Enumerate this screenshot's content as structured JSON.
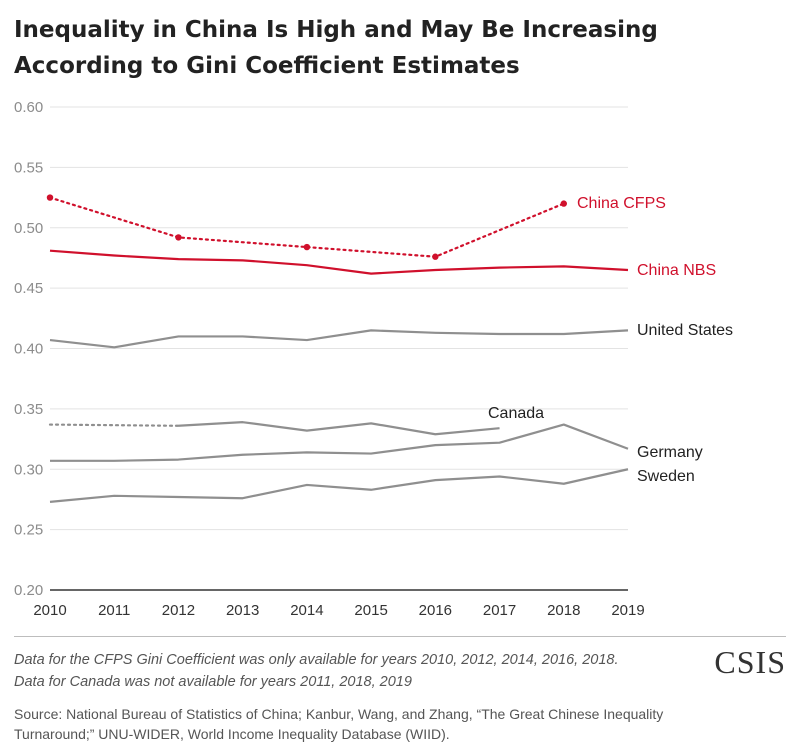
{
  "title": "Inequality in China Is High and May Be Increasing According to Gini Coefficient Estimates",
  "notes": [
    "Data for the CFPS Gini Coefficient was only available for years 2010, 2012, 2014, 2016, 2018.",
    "Data for Canada was not available for years 2011, 2018, 2019"
  ],
  "source": "Source: National Bureau of Statistics of China; Kanbur, Wang, and Zhang, “The Great Chinese Inequality Turnaround;” UNU-WIDER, World Income Inequality Database (WIID).",
  "logo": "CSIS",
  "chart_data": {
    "type": "line",
    "title": "Inequality in China Is High and May Be Increasing According to Gini Coefficient Estimates",
    "xlabel": "",
    "ylabel": "",
    "x": [
      2010,
      2011,
      2012,
      2013,
      2014,
      2015,
      2016,
      2017,
      2018,
      2019
    ],
    "ylim": [
      0.2,
      0.6
    ],
    "yticks": [
      "0.20",
      "0.25",
      "0.30",
      "0.35",
      "0.40",
      "0.45",
      "0.50",
      "0.55",
      "0.60"
    ],
    "grid": true,
    "legend": "direct labels at line ends",
    "series": [
      {
        "name": "China CFPS",
        "color": "#d0102c",
        "style": "dotted",
        "markers": true,
        "values": [
          0.525,
          null,
          0.492,
          null,
          0.484,
          null,
          0.476,
          null,
          0.52,
          null
        ]
      },
      {
        "name": "China NBS",
        "color": "#d0102c",
        "style": "solid",
        "values": [
          0.481,
          0.477,
          0.474,
          0.473,
          0.469,
          0.462,
          0.465,
          0.467,
          0.468,
          0.465
        ]
      },
      {
        "name": "United States",
        "color": "#8f8f8f",
        "style": "solid",
        "values": [
          0.407,
          0.401,
          0.41,
          0.41,
          0.407,
          0.415,
          0.413,
          0.412,
          0.412,
          0.415
        ]
      },
      {
        "name": "Canada",
        "color": "#8f8f8f",
        "style": "solid",
        "values": [
          0.337,
          null,
          0.336,
          0.339,
          0.332,
          0.338,
          0.329,
          0.334,
          null,
          null
        ],
        "gap_style": "dotted"
      },
      {
        "name": "Germany",
        "color": "#8f8f8f",
        "style": "solid",
        "values": [
          0.307,
          0.307,
          0.308,
          0.312,
          0.314,
          0.313,
          0.32,
          0.322,
          0.337,
          0.317
        ]
      },
      {
        "name": "Sweden",
        "color": "#8f8f8f",
        "style": "solid",
        "values": [
          0.273,
          0.278,
          0.277,
          0.276,
          0.287,
          0.283,
          0.291,
          0.294,
          0.288,
          0.3
        ]
      }
    ]
  }
}
